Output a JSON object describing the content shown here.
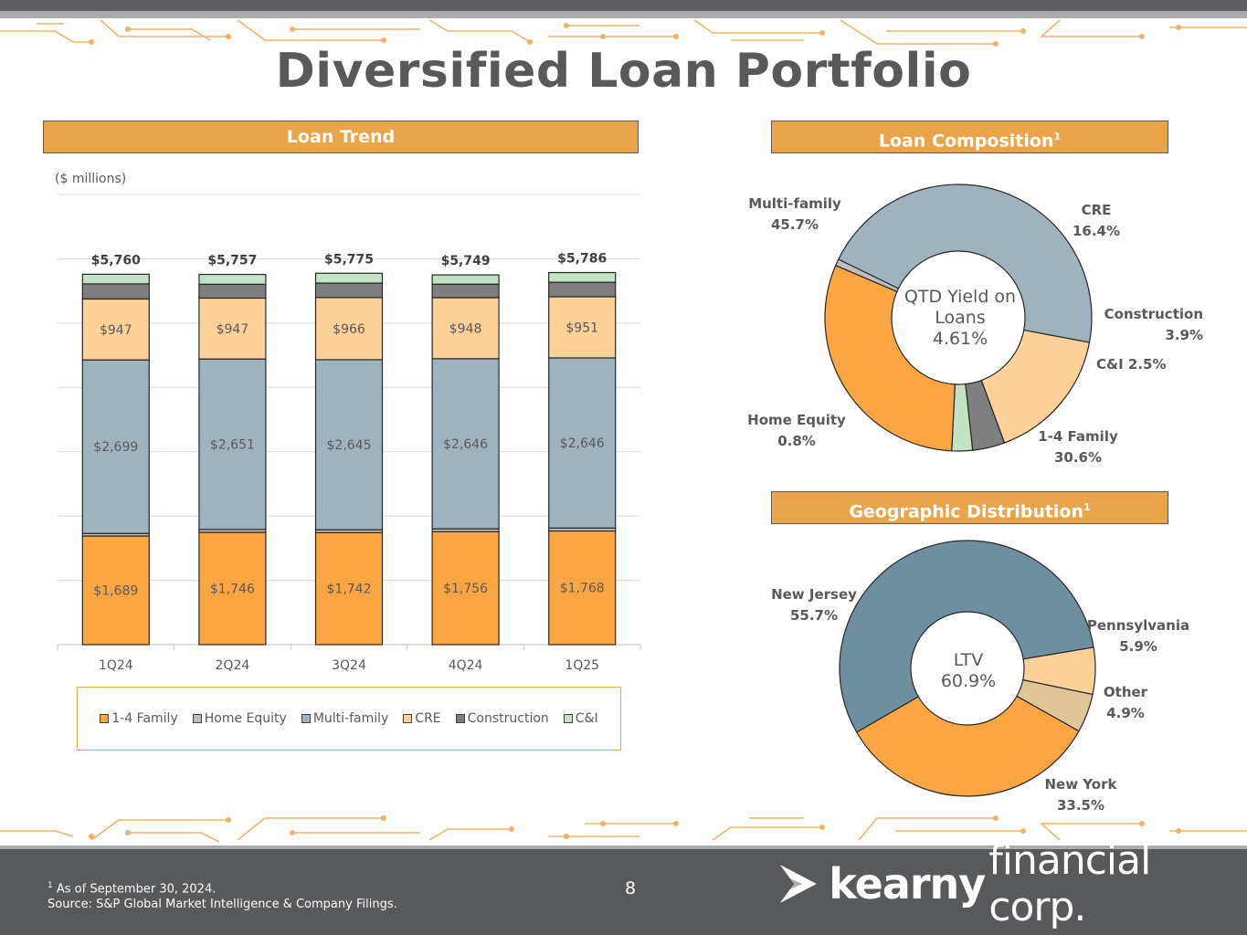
{
  "title": "Diversified Loan Portfolio",
  "colors": {
    "accent": "#eaa44a",
    "text": "#58595b",
    "family_1_4": "#fba642",
    "home_equity": "#bfbfbf",
    "multi_family": "#9fb3bf",
    "cre": "#fdd197",
    "construction": "#7f7f7f",
    "ci": "#c4e2c4",
    "new_jersey": "#6e8f9f",
    "pennsylvania": "#fdd197",
    "other": "#dfc59a",
    "new_york": "#fba642"
  },
  "loan_trend": {
    "banner": "Loan Trend",
    "units": "($ millions)",
    "legend": [
      "1-4 Family",
      "Home Equity",
      "Multi-family",
      "CRE",
      "Construction",
      "C&I"
    ]
  },
  "composition": {
    "banner": "Loan Composition",
    "banner_sup": "1",
    "center": [
      "QTD Yield on",
      "Loans",
      "4.61%"
    ]
  },
  "geography": {
    "banner": "Geographic Distribution",
    "banner_sup": "1",
    "center": [
      "LTV",
      "60.9%"
    ]
  },
  "chart_data": [
    {
      "type": "bar",
      "stacked": true,
      "categories": [
        "1Q24",
        "2Q24",
        "3Q24",
        "4Q24",
        "1Q25"
      ],
      "totals": [
        "$5,760",
        "$5,757",
        "$5,775",
        "$5,749",
        "$5,786"
      ],
      "total_values": [
        5760,
        5757,
        5775,
        5749,
        5786
      ],
      "ylim": [
        0,
        7000
      ],
      "grid": true,
      "series": [
        {
          "name": "1-4 Family",
          "values": [
            1689,
            1746,
            1742,
            1756,
            1768
          ],
          "labels": [
            "$1,689",
            "$1,746",
            "$1,742",
            "$1,756",
            "$1,768"
          ]
        },
        {
          "name": "Home Equity",
          "values": [
            40,
            45,
            44,
            45,
            45
          ],
          "labels": []
        },
        {
          "name": "Multi-family",
          "values": [
            2699,
            2651,
            2645,
            2646,
            2646
          ],
          "labels": [
            "$2,699",
            "$2,651",
            "$2,645",
            "$2,646",
            "$2,646"
          ]
        },
        {
          "name": "CRE",
          "values": [
            947,
            947,
            966,
            948,
            951
          ],
          "labels": [
            "$947",
            "$947",
            "$966",
            "$948",
            "$951"
          ]
        },
        {
          "name": "Construction",
          "values": [
            235,
            215,
            225,
            210,
            225
          ],
          "labels": []
        },
        {
          "name": "C&I",
          "values": [
            150,
            153,
            153,
            144,
            151
          ],
          "labels": []
        }
      ]
    },
    {
      "type": "pie",
      "donut": true,
      "slices": [
        {
          "name": "Multi-family",
          "pct_label": "45.7%",
          "value": 45.7
        },
        {
          "name": "CRE",
          "pct_label": "16.4%",
          "value": 16.4
        },
        {
          "name": "Construction",
          "pct_label": "3.9%",
          "value": 3.9
        },
        {
          "name": "C&I",
          "pct_label": "2.5%",
          "value": 2.5
        },
        {
          "name": "1-4 Family",
          "pct_label": "30.6%",
          "value": 30.6
        },
        {
          "name": "Home Equity",
          "pct_label": "0.8%",
          "value": 0.8
        }
      ]
    },
    {
      "type": "pie",
      "donut": true,
      "slices": [
        {
          "name": "New Jersey",
          "pct_label": "55.7%",
          "value": 55.7
        },
        {
          "name": "Pennsylvania",
          "pct_label": "5.9%",
          "value": 5.9
        },
        {
          "name": "Other",
          "pct_label": "4.9%",
          "value": 4.9
        },
        {
          "name": "New York",
          "pct_label": "33.5%",
          "value": 33.5
        }
      ]
    }
  ],
  "footer": {
    "footnote_mark": "1",
    "footnote": "As of September 30, 2024.",
    "source": "Source: S&P Global Market Intelligence & Company Filings.",
    "page": "8",
    "logo_bold": "kearny",
    "logo_light": "financial corp."
  }
}
